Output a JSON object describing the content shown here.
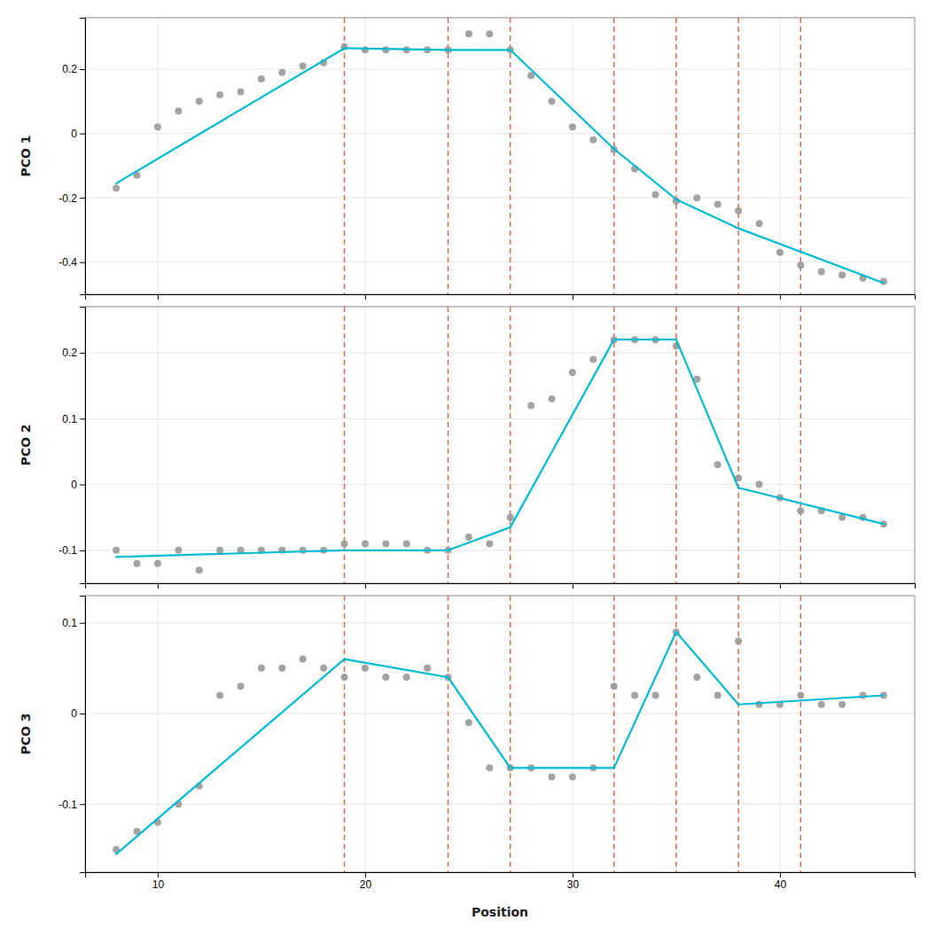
{
  "chart_data": [
    {
      "type": "scatter",
      "ylabel": "PCO 1",
      "grid": true,
      "tick_labels": "y",
      "xlim": [
        6.5,
        46.5
      ],
      "xticks": [
        10,
        20,
        30,
        40
      ],
      "ylim": [
        -0.5,
        0.36
      ],
      "yticks": [
        0.2,
        0.0,
        -0.2,
        -0.4
      ],
      "series": [
        {
          "type": "vline",
          "color": "#CC5533",
          "line_style": "dashed",
          "x": [
            19,
            24,
            27,
            32,
            35,
            38,
            41
          ]
        },
        {
          "type": "scatter",
          "color": "#999999",
          "marker": "circle",
          "x": [
            8,
            9,
            10,
            11,
            12,
            13,
            14,
            15,
            16,
            17,
            18,
            19,
            20,
            21,
            22,
            23,
            24,
            25,
            26,
            27,
            28,
            29,
            30,
            31,
            32,
            33,
            34,
            35,
            36,
            37,
            38,
            39,
            40,
            41,
            42,
            43,
            44,
            45
          ],
          "values": [
            -0.17,
            -0.13,
            0.02,
            0.07,
            0.1,
            0.12,
            0.13,
            0.17,
            0.19,
            0.21,
            0.22,
            0.27,
            0.26,
            0.26,
            0.26,
            0.26,
            0.26,
            0.31,
            0.31,
            0.26,
            0.18,
            0.1,
            0.02,
            -0.02,
            -0.05,
            -0.11,
            -0.19,
            -0.21,
            -0.2,
            -0.22,
            -0.24,
            -0.28,
            -0.37,
            -0.41,
            -0.43,
            -0.44,
            -0.45,
            -0.46
          ]
        },
        {
          "type": "line",
          "color": "#00BCD4",
          "x": [
            8,
            19
          ],
          "values": [
            -0.155,
            0.265
          ]
        },
        {
          "type": "line",
          "color": "#00BCD4",
          "x": [
            19,
            24
          ],
          "values": [
            0.265,
            0.26
          ]
        },
        {
          "type": "line",
          "color": "#00BCD4",
          "x": [
            24,
            27
          ],
          "values": [
            0.26,
            0.26
          ]
        },
        {
          "type": "line",
          "color": "#00BCD4",
          "x": [
            27,
            32
          ],
          "values": [
            0.26,
            -0.048
          ]
        },
        {
          "type": "line",
          "color": "#00BCD4",
          "x": [
            32,
            35
          ],
          "values": [
            -0.048,
            -0.205
          ]
        },
        {
          "type": "line",
          "color": "#00BCD4",
          "x": [
            35,
            38
          ],
          "values": [
            -0.205,
            -0.295
          ]
        },
        {
          "type": "line",
          "color": "#00BCD4",
          "x": [
            38,
            45
          ],
          "values": [
            -0.295,
            -0.465
          ]
        }
      ]
    },
    {
      "type": "scatter",
      "ylabel": "PCO 2",
      "grid": true,
      "tick_labels": "y",
      "xlim": [
        6.5,
        46.5
      ],
      "xticks": [
        10,
        20,
        30,
        40
      ],
      "ylim": [
        -0.15,
        0.27
      ],
      "yticks": [
        0.2,
        0.1,
        0.0,
        -0.1
      ],
      "series": [
        {
          "type": "vline",
          "color": "#CC5533",
          "line_style": "dashed",
          "x": [
            19,
            24,
            27,
            32,
            35,
            38,
            41
          ]
        },
        {
          "type": "scatter",
          "color": "#999999",
          "marker": "circle",
          "x": [
            8,
            9,
            10,
            11,
            12,
            13,
            14,
            15,
            16,
            17,
            18,
            19,
            20,
            21,
            22,
            23,
            24,
            25,
            26,
            27,
            28,
            29,
            30,
            31,
            32,
            33,
            34,
            35,
            36,
            37,
            38,
            39,
            40,
            41,
            42,
            43,
            44,
            45
          ],
          "values": [
            -0.1,
            -0.12,
            -0.12,
            -0.1,
            -0.13,
            -0.1,
            -0.1,
            -0.1,
            -0.1,
            -0.1,
            -0.1,
            -0.09,
            -0.09,
            -0.09,
            -0.09,
            -0.1,
            -0.1,
            -0.08,
            -0.09,
            -0.05,
            0.12,
            0.13,
            0.17,
            0.19,
            0.22,
            0.22,
            0.22,
            0.21,
            0.16,
            0.03,
            0.01,
            -0.0,
            -0.02,
            -0.04,
            -0.04,
            -0.05,
            -0.05,
            -0.06
          ]
        },
        {
          "type": "line",
          "color": "#00BCD4",
          "x": [
            8,
            19
          ],
          "values": [
            -0.11,
            -0.1
          ]
        },
        {
          "type": "line",
          "color": "#00BCD4",
          "x": [
            19,
            24
          ],
          "values": [
            -0.1,
            -0.1
          ]
        },
        {
          "type": "line",
          "color": "#00BCD4",
          "x": [
            24,
            27
          ],
          "values": [
            -0.1,
            -0.065
          ]
        },
        {
          "type": "line",
          "color": "#00BCD4",
          "x": [
            27,
            32
          ],
          "values": [
            -0.065,
            0.22
          ]
        },
        {
          "type": "line",
          "color": "#00BCD4",
          "x": [
            32,
            35
          ],
          "values": [
            0.22,
            0.22
          ]
        },
        {
          "type": "line",
          "color": "#00BCD4",
          "x": [
            35,
            38
          ],
          "values": [
            0.22,
            -0.005
          ]
        },
        {
          "type": "line",
          "color": "#00BCD4",
          "x": [
            38,
            45
          ],
          "values": [
            -0.005,
            -0.06
          ]
        }
      ]
    },
    {
      "type": "scatter",
      "ylabel": "PCO 3",
      "xlabel": "Position",
      "grid": true,
      "xlim": [
        6.5,
        46.5
      ],
      "xticks": [
        10,
        20,
        30,
        40
      ],
      "ylim": [
        -0.175,
        0.13
      ],
      "yticks": [
        0.1,
        0.0,
        -0.1
      ],
      "series": [
        {
          "type": "vline",
          "color": "#CC5533",
          "line_style": "dashed",
          "x": [
            19,
            24,
            27,
            32,
            35,
            38,
            41
          ]
        },
        {
          "type": "scatter",
          "color": "#999999",
          "marker": "circle",
          "x": [
            8,
            9,
            10,
            11,
            12,
            13,
            14,
            15,
            16,
            17,
            18,
            19,
            20,
            21,
            22,
            23,
            24,
            25,
            26,
            27,
            28,
            29,
            30,
            31,
            32,
            33,
            34,
            35,
            36,
            37,
            38,
            39,
            40,
            41,
            42,
            43,
            44,
            45
          ],
          "values": [
            -0.15,
            -0.13,
            -0.12,
            -0.1,
            -0.08,
            0.02,
            0.03,
            0.05,
            0.05,
            0.06,
            0.05,
            0.04,
            0.05,
            0.04,
            0.04,
            0.05,
            0.04,
            -0.01,
            -0.06,
            -0.06,
            -0.06,
            -0.07,
            -0.07,
            -0.06,
            0.03,
            0.02,
            0.02,
            0.09,
            0.04,
            0.02,
            0.08,
            0.01,
            0.01,
            0.02,
            0.01,
            0.01,
            0.02,
            0.02
          ]
        },
        {
          "type": "line",
          "color": "#00BCD4",
          "x": [
            8,
            19
          ],
          "values": [
            -0.155,
            0.06
          ]
        },
        {
          "type": "line",
          "color": "#00BCD4",
          "x": [
            19,
            24
          ],
          "values": [
            0.06,
            0.04
          ]
        },
        {
          "type": "line",
          "color": "#00BCD4",
          "x": [
            24,
            27
          ],
          "values": [
            0.04,
            -0.06
          ]
        },
        {
          "type": "line",
          "color": "#00BCD4",
          "x": [
            27,
            32
          ],
          "values": [
            -0.06,
            -0.06
          ]
        },
        {
          "type": "line",
          "color": "#00BCD4",
          "x": [
            32,
            35
          ],
          "values": [
            -0.06,
            0.09
          ]
        },
        {
          "type": "line",
          "color": "#00BCD4",
          "x": [
            35,
            38
          ],
          "values": [
            0.09,
            0.01
          ]
        },
        {
          "type": "line",
          "color": "#00BCD4",
          "x": [
            38,
            45
          ],
          "values": [
            0.01,
            0.02
          ]
        }
      ]
    }
  ]
}
